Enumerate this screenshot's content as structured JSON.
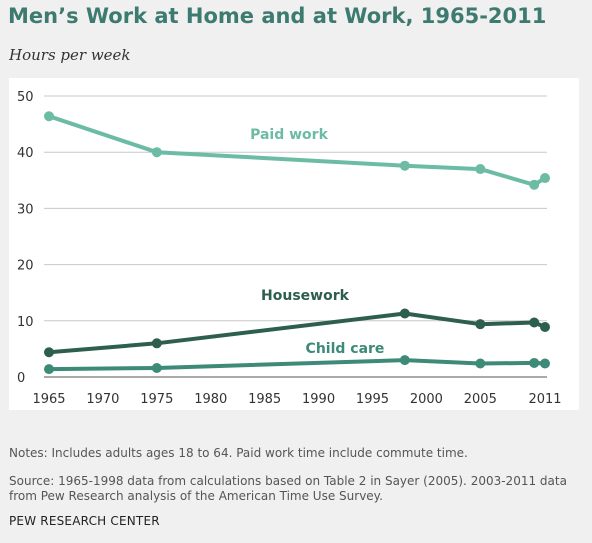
{
  "header": {
    "title": "Men’s Work at Home and at Work, 1965-2011",
    "subtitle": "Hours per week"
  },
  "notes": {
    "note": "Notes: Includes adults ages 18 to 64. Paid work time include commute time.",
    "source": "Source: 1965-1998 data from calculations based on Table 2 in Sayer (2005). 2003-2011 data from Pew Research analysis of the American Time Use Survey.",
    "credit": "PEW RESEARCH CENTER"
  },
  "chart_data": {
    "type": "line",
    "title": "Men’s Work at Home and at Work, 1965-2011",
    "ylabel": "Hours per week",
    "xlabel": "",
    "xlim": [
      1965,
      2011
    ],
    "ylim": [
      0,
      50
    ],
    "x_ticks": [
      "1965",
      "1970",
      "1975",
      "1980",
      "1985",
      "1990",
      "1995",
      "2000",
      "2005",
      "2011"
    ],
    "y_ticks": [
      "0",
      "10",
      "20",
      "30",
      "40",
      "50"
    ],
    "grid": true,
    "series": [
      {
        "name": "Paid work",
        "color": "#6cbba5",
        "x": [
          1965,
          1975,
          1998,
          2005,
          2010,
          2011
        ],
        "values": [
          46.4,
          40.0,
          37.6,
          37.0,
          34.2,
          35.4
        ]
      },
      {
        "name": "Housework",
        "color": "#2e5e4e",
        "x": [
          1965,
          1975,
          1998,
          2005,
          2010,
          2011
        ],
        "values": [
          4.4,
          6.0,
          11.3,
          9.4,
          9.7,
          8.9
        ]
      },
      {
        "name": "Child care",
        "color": "#3d8a78",
        "x": [
          1965,
          1975,
          1998,
          2005,
          2010,
          2011
        ],
        "values": [
          1.4,
          1.6,
          3.0,
          2.4,
          2.5,
          2.4
        ]
      }
    ]
  }
}
